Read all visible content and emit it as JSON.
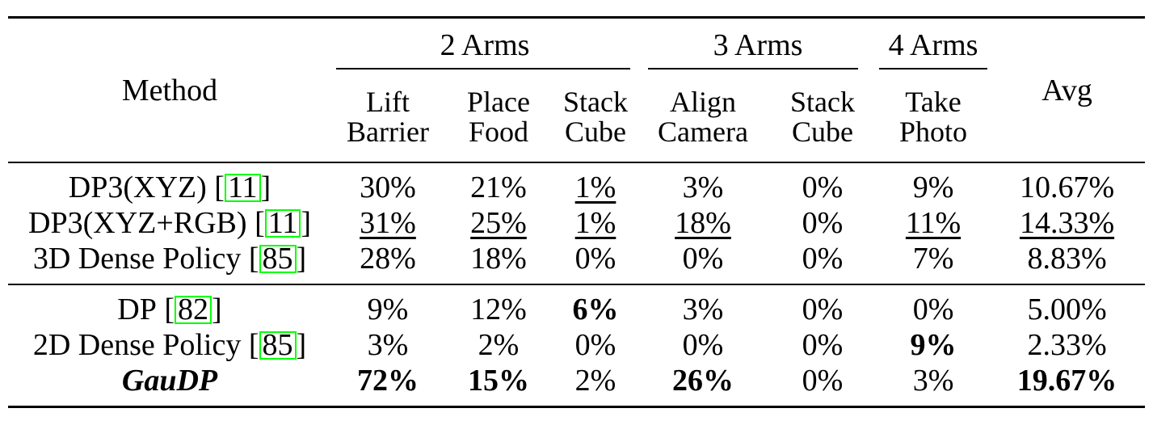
{
  "table": {
    "method_header": "Method",
    "avg_header": "Avg",
    "groups": [
      {
        "label": "2 Arms",
        "span": 3
      },
      {
        "label": "3 Arms",
        "span": 2
      },
      {
        "label": "4 Arms",
        "span": 1
      }
    ],
    "subcolumns": [
      {
        "line1": "Lift",
        "line2": "Barrier"
      },
      {
        "line1": "Place",
        "line2": "Food"
      },
      {
        "line1": "Stack",
        "line2": "Cube"
      },
      {
        "line1": "Align",
        "line2": "Camera"
      },
      {
        "line1": "Stack",
        "line2": "Cube"
      },
      {
        "line1": "Take",
        "line2": "Photo"
      }
    ],
    "citation_box_color": "#00ff00",
    "cite_brackets": [
      "[",
      "]"
    ],
    "sections": [
      {
        "rows": [
          {
            "method": "DP3(XYZ)",
            "cite": "11",
            "method_style": "normal",
            "cells": [
              {
                "t": "30%",
                "s": "n"
              },
              {
                "t": "21%",
                "s": "n"
              },
              {
                "t": "1%",
                "s": "u"
              },
              {
                "t": "3%",
                "s": "n"
              },
              {
                "t": "0%",
                "s": "n"
              },
              {
                "t": "9%",
                "s": "n"
              },
              {
                "t": "10.67%",
                "s": "n"
              }
            ]
          },
          {
            "method": "DP3(XYZ+RGB)",
            "cite": "11",
            "method_style": "normal",
            "cells": [
              {
                "t": "31%",
                "s": "u"
              },
              {
                "t": "25%",
                "s": "u"
              },
              {
                "t": "1%",
                "s": "u"
              },
              {
                "t": "18%",
                "s": "u"
              },
              {
                "t": "0%",
                "s": "n"
              },
              {
                "t": "11%",
                "s": "u"
              },
              {
                "t": "14.33%",
                "s": "u"
              }
            ]
          },
          {
            "method": "3D Dense Policy",
            "cite": "85",
            "method_style": "normal",
            "cells": [
              {
                "t": "28%",
                "s": "n"
              },
              {
                "t": "18%",
                "s": "n"
              },
              {
                "t": "0%",
                "s": "n"
              },
              {
                "t": "0%",
                "s": "n"
              },
              {
                "t": "0%",
                "s": "n"
              },
              {
                "t": "7%",
                "s": "n"
              },
              {
                "t": "8.83%",
                "s": "n"
              }
            ]
          }
        ]
      },
      {
        "rows": [
          {
            "method": "DP",
            "cite": "82",
            "method_style": "normal",
            "cells": [
              {
                "t": "9%",
                "s": "n"
              },
              {
                "t": "12%",
                "s": "n"
              },
              {
                "t": "6%",
                "s": "b"
              },
              {
                "t": "3%",
                "s": "n"
              },
              {
                "t": "0%",
                "s": "n"
              },
              {
                "t": "0%",
                "s": "n"
              },
              {
                "t": "5.00%",
                "s": "n"
              }
            ]
          },
          {
            "method": "2D Dense Policy",
            "cite": "85",
            "method_style": "normal",
            "cells": [
              {
                "t": "3%",
                "s": "n"
              },
              {
                "t": "2%",
                "s": "n"
              },
              {
                "t": "0%",
                "s": "n"
              },
              {
                "t": "0%",
                "s": "n"
              },
              {
                "t": "0%",
                "s": "n"
              },
              {
                "t": "9%",
                "s": "b"
              },
              {
                "t": "2.33%",
                "s": "n"
              }
            ]
          },
          {
            "method": "GauDP",
            "cite": null,
            "method_style": "bold-italic",
            "cells": [
              {
                "t": "72%",
                "s": "b"
              },
              {
                "t": "15%",
                "s": "b"
              },
              {
                "t": "2%",
                "s": "n"
              },
              {
                "t": "26%",
                "s": "b"
              },
              {
                "t": "0%",
                "s": "n"
              },
              {
                "t": "3%",
                "s": "n"
              },
              {
                "t": "19.67%",
                "s": "b"
              }
            ]
          }
        ]
      }
    ]
  }
}
